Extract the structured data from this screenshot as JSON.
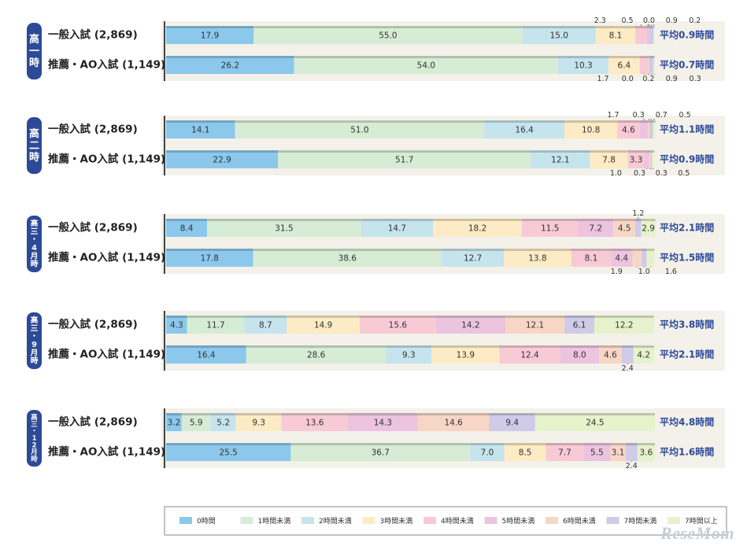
{
  "chart_data": {
    "type": "bar",
    "orientation": "horizontal-stacked-100",
    "categories": [
      "0時間",
      "1時間未満",
      "2時間未満",
      "3時間未満",
      "4時間未満",
      "5時間未満",
      "6時間未満",
      "7時間未満",
      "7時間以上"
    ],
    "colors": [
      "#8cc8ec",
      "#d6ecd4",
      "#c6e4ee",
      "#fcebc4",
      "#f8cad6",
      "#ecc4e0",
      "#f8d6c6",
      "#cfcbe8",
      "#e6f2cc"
    ],
    "groups": [
      {
        "label": "高一時",
        "rows": [
          {
            "name": "一般入試 (2,869)",
            "values": [
              17.9,
              55.0,
              15.0,
              8.1,
              2.3,
              0.5,
              0.0,
              0.9,
              0.2
            ],
            "labels": [
              "17.9",
              "55.0",
              "15.0",
              "8.1",
              "2.3",
              "0.5",
              "0.0",
              "0.9",
              "0.2"
            ],
            "average": "平均0.9時間"
          },
          {
            "name": "推薦・AO入試 (1,149)",
            "values": [
              26.2,
              54.0,
              10.3,
              6.4,
              1.7,
              0.0,
              0.2,
              0.9,
              0.3
            ],
            "labels": [
              "26.2",
              "54.0",
              "10.3",
              "6.4",
              "1.7",
              "0.0",
              "0.2",
              "0.9",
              "0.3"
            ],
            "average": "平均0.7時間"
          }
        ]
      },
      {
        "label": "高二時",
        "rows": [
          {
            "name": "一般入試 (2,869)",
            "values": [
              14.1,
              51.0,
              16.4,
              10.8,
              4.6,
              1.7,
              0.3,
              0.7,
              0.5
            ],
            "labels": [
              "14.1",
              "51.0",
              "16.4",
              "10.8",
              "4.6",
              "1.7",
              "0.3",
              "0.7",
              "0.5"
            ],
            "average": "平均1.1時間"
          },
          {
            "name": "推薦・AO入試 (1,149)",
            "values": [
              22.9,
              51.7,
              12.1,
              7.8,
              3.3,
              1.0,
              0.3,
              0.3,
              0.5
            ],
            "labels": [
              "22.9",
              "51.7",
              "12.1",
              "7.8",
              "3.3",
              "1.0",
              "0.3",
              "0.3",
              "0.5"
            ],
            "average": "平均0.9時間"
          }
        ]
      },
      {
        "label": "高三・4月時",
        "rows": [
          {
            "name": "一般入試 (2,869)",
            "values": [
              8.4,
              31.5,
              14.7,
              18.2,
              11.5,
              7.2,
              4.5,
              1.2,
              2.9
            ],
            "labels": [
              "8.4",
              "31.5",
              "14.7",
              "18.2",
              "11.5",
              "7.2",
              "4.5",
              "1.2",
              "2.9"
            ],
            "average": "平均2.1時間"
          },
          {
            "name": "推薦・AO入試 (1,149)",
            "values": [
              17.8,
              38.6,
              12.7,
              13.8,
              8.1,
              4.4,
              1.9,
              1.0,
              1.6
            ],
            "labels": [
              "17.8",
              "38.6",
              "12.7",
              "13.8",
              "8.1",
              "4.4",
              "1.9",
              "1.0",
              "1.6"
            ],
            "average": "平均1.5時間"
          }
        ]
      },
      {
        "label": "高三・9月時",
        "rows": [
          {
            "name": "一般入試 (2,869)",
            "values": [
              4.3,
              11.7,
              8.7,
              14.9,
              15.6,
              14.2,
              12.1,
              6.1,
              12.2
            ],
            "labels": [
              "4.3",
              "11.7",
              "8.7",
              "14.9",
              "15.6",
              "14.2",
              "12.1",
              "6.1",
              "12.2"
            ],
            "average": "平均3.8時間"
          },
          {
            "name": "推薦・AO入試 (1,149)",
            "values": [
              16.4,
              28.6,
              9.3,
              13.9,
              12.4,
              8.0,
              4.6,
              2.4,
              4.2
            ],
            "labels": [
              "16.4",
              "28.6",
              "9.3",
              "13.9",
              "12.4",
              "8.0",
              "4.6",
              "2.4",
              "4.2"
            ],
            "average": "平均2.1時間"
          }
        ]
      },
      {
        "label": "高三・12月時",
        "rows": [
          {
            "name": "一般入試 (2,869)",
            "values": [
              3.2,
              5.9,
              5.2,
              9.3,
              13.6,
              14.3,
              14.6,
              9.4,
              24.5
            ],
            "labels": [
              "3.2",
              "5.9",
              "5.2",
              "9.3",
              "13.6",
              "14.3",
              "14.6",
              "9.4",
              "24.5"
            ],
            "average": "平均4.8時間"
          },
          {
            "name": "推薦・AO入試 (1,149)",
            "values": [
              25.5,
              36.7,
              7.0,
              8.5,
              7.7,
              5.5,
              3.1,
              2.4,
              3.6
            ],
            "labels": [
              "25.5",
              "36.7",
              "7.0",
              "8.5",
              "7.7",
              "5.5",
              "3.1",
              "2.4",
              "3.6"
            ],
            "average": "平均1.6時間"
          }
        ]
      }
    ],
    "xlim": [
      0,
      100
    ],
    "xlabel": "",
    "ylabel": "",
    "title": "",
    "legend_position": "bottom"
  },
  "watermark": "ReseMom",
  "legend_title_tag": "7時間以上"
}
